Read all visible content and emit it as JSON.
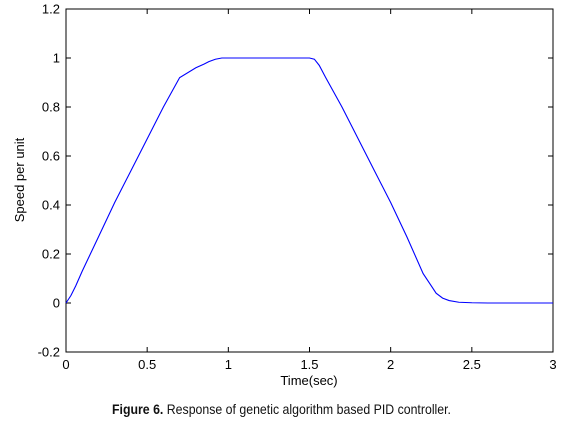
{
  "chart_data": {
    "type": "line",
    "title": "",
    "xlabel": "Time(sec)",
    "ylabel": "Speed per unit",
    "xlim": [
      0,
      3
    ],
    "ylim": [
      -0.2,
      1.2
    ],
    "xticks": [
      0,
      0.5,
      1,
      1.5,
      2,
      2.5,
      3
    ],
    "yticks": [
      -0.2,
      0,
      0.2,
      0.4,
      0.6,
      0.8,
      1,
      1.2
    ],
    "xtick_labels": [
      "0",
      "0.5",
      "1",
      "1.5",
      "2",
      "2.5",
      "3"
    ],
    "ytick_labels": [
      "-0.2",
      "0",
      "0.2",
      "0.4",
      "0.6",
      "0.8",
      "1",
      "1.2"
    ],
    "grid": false,
    "line_color": "#0000ff",
    "series": [
      {
        "x": [
          0,
          0.03,
          0.06,
          0.1,
          0.2,
          0.3,
          0.4,
          0.5,
          0.6,
          0.7,
          0.8,
          0.85,
          0.88,
          0.92,
          0.96,
          1.0,
          1.1,
          1.2,
          1.3,
          1.4,
          1.5,
          1.53,
          1.56,
          1.6,
          1.7,
          1.8,
          1.9,
          2.0,
          2.1,
          2.2,
          2.25,
          2.28,
          2.32,
          2.36,
          2.42,
          2.5,
          2.6,
          2.8,
          3.0
        ],
        "y": [
          0,
          0.03,
          0.07,
          0.13,
          0.27,
          0.41,
          0.54,
          0.67,
          0.8,
          0.92,
          0.96,
          0.975,
          0.985,
          0.995,
          1.0,
          1.0,
          1.0,
          1.0,
          1.0,
          1.0,
          1.0,
          0.995,
          0.97,
          0.92,
          0.8,
          0.67,
          0.54,
          0.41,
          0.27,
          0.12,
          0.07,
          0.04,
          0.02,
          0.01,
          0.003,
          0.001,
          0.0,
          0.0,
          0.0
        ]
      }
    ]
  },
  "caption": {
    "figure_label": "Figure 6.",
    "text": " Response of genetic algorithm based PID controller."
  }
}
